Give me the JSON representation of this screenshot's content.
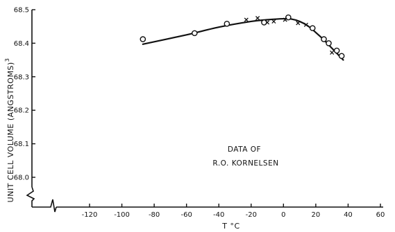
{
  "chart_data": {
    "type": "scatter",
    "xlabel": "T °C",
    "ylabel": "UNIT CELL VOLUME (ANGSTROMS)",
    "ylabel_superscript": "3",
    "xlim": [
      -140,
      60
    ],
    "ylim": [
      67.9,
      68.5
    ],
    "x_ticks": [
      -120,
      -100,
      -80,
      -60,
      -40,
      -20,
      0,
      20,
      40,
      60
    ],
    "y_ticks": [
      68.0,
      68.1,
      68.2,
      68.3,
      68.4,
      68.5
    ],
    "x_tick_labels": [
      "-120",
      "-100",
      "-80",
      "-60",
      "-40",
      "-20",
      "0",
      "20",
      "40",
      "60"
    ],
    "y_tick_labels": [
      "68.0",
      "68.1",
      "68.2",
      "68.3",
      "68.4",
      "68.5"
    ],
    "axis_break": "y-axis broken below 68.0 (zig-zag)",
    "grid": false,
    "annotation": [
      "DATA OF",
      "R.O. KORNELSEN"
    ],
    "series": [
      {
        "marker": "circle",
        "x": [
          -87,
          -55,
          -35,
          -12,
          3,
          18,
          25,
          28,
          33,
          36
        ],
        "y": [
          68.412,
          68.43,
          68.458,
          68.462,
          68.477,
          68.445,
          68.412,
          68.4,
          68.378,
          68.362
        ]
      },
      {
        "marker": "cross",
        "x": [
          -23,
          -16,
          -10,
          -6,
          1,
          9,
          14,
          30
        ],
        "y": [
          68.47,
          68.475,
          68.462,
          68.465,
          68.47,
          68.46,
          68.455,
          68.372
        ]
      },
      {
        "marker": "line",
        "x": [
          -87,
          -60,
          -40,
          -20,
          -10,
          0,
          5,
          10,
          15,
          20,
          25,
          30,
          35,
          37
        ],
        "y": [
          68.397,
          68.425,
          68.448,
          68.465,
          68.47,
          68.473,
          68.472,
          68.465,
          68.452,
          68.432,
          68.41,
          68.385,
          68.36,
          68.35
        ]
      }
    ]
  }
}
